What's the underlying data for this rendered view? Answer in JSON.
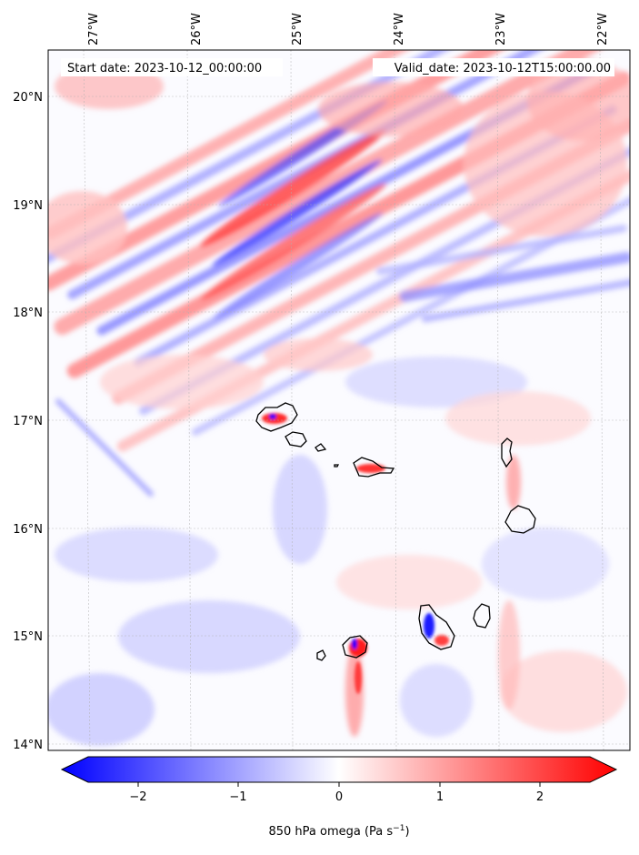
{
  "map": {
    "start_label": "Start date: 2023-10-12_00:00:00",
    "valid_label": "Valid_date: 2023-10-12T15:00:00.00",
    "lon_ticks": [
      "27°W",
      "26°W",
      "25°W",
      "24°W",
      "23°W",
      "22°W"
    ],
    "lat_ticks": [
      "20°N",
      "19°N",
      "18°N",
      "17°N",
      "16°N",
      "15°N",
      "14°N"
    ],
    "field_colors": {
      "negative": "#0000ff",
      "neutral": "#ffffff",
      "positive": "#ff0000",
      "coast": "#000000"
    }
  },
  "colorbar": {
    "ticks": [
      "−2",
      "−1",
      "0",
      "1",
      "2"
    ],
    "label_main": "850 hPa omega (Pa s",
    "label_exp": "−1",
    "label_close": ")",
    "range": [
      -2.6,
      2.6
    ]
  }
}
